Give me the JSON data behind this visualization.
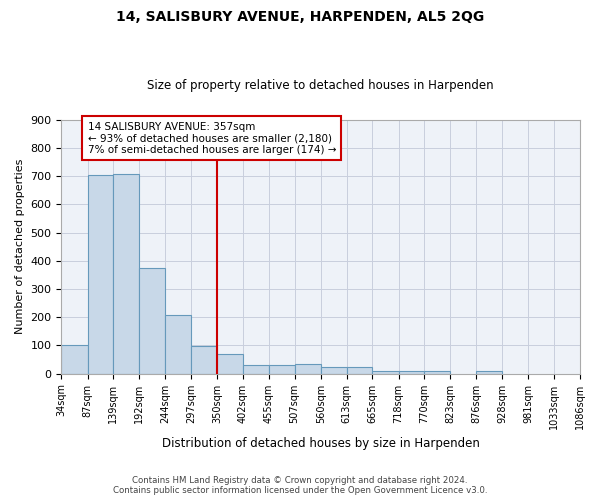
{
  "title": "14, SALISBURY AVENUE, HARPENDEN, AL5 2QG",
  "subtitle": "Size of property relative to detached houses in Harpenden",
  "xlabel": "Distribution of detached houses by size in Harpenden",
  "ylabel": "Number of detached properties",
  "bar_color": "#c8d8e8",
  "bar_edge_color": "#6699bb",
  "background_color": "#eef2f8",
  "grid_color": "#c8cedd",
  "vline_x": 350,
  "vline_color": "#cc0000",
  "annotation_text": "14 SALISBURY AVENUE: 357sqm\n← 93% of detached houses are smaller (2,180)\n7% of semi-detached houses are larger (174) →",
  "annotation_box_color": "#cc0000",
  "footer": "Contains HM Land Registry data © Crown copyright and database right 2024.\nContains public sector information licensed under the Open Government Licence v3.0.",
  "bin_edges": [
    34,
    87,
    139,
    192,
    244,
    297,
    350,
    402,
    455,
    507,
    560,
    613,
    665,
    718,
    770,
    823,
    876,
    928,
    981,
    1033,
    1086
  ],
  "bar_heights": [
    100,
    705,
    707,
    375,
    207,
    97,
    70,
    32,
    32,
    35,
    22,
    23,
    10,
    10,
    10,
    0,
    10,
    0,
    0,
    0
  ],
  "ylim": [
    0,
    900
  ],
  "yticks": [
    0,
    100,
    200,
    300,
    400,
    500,
    600,
    700,
    800,
    900
  ]
}
